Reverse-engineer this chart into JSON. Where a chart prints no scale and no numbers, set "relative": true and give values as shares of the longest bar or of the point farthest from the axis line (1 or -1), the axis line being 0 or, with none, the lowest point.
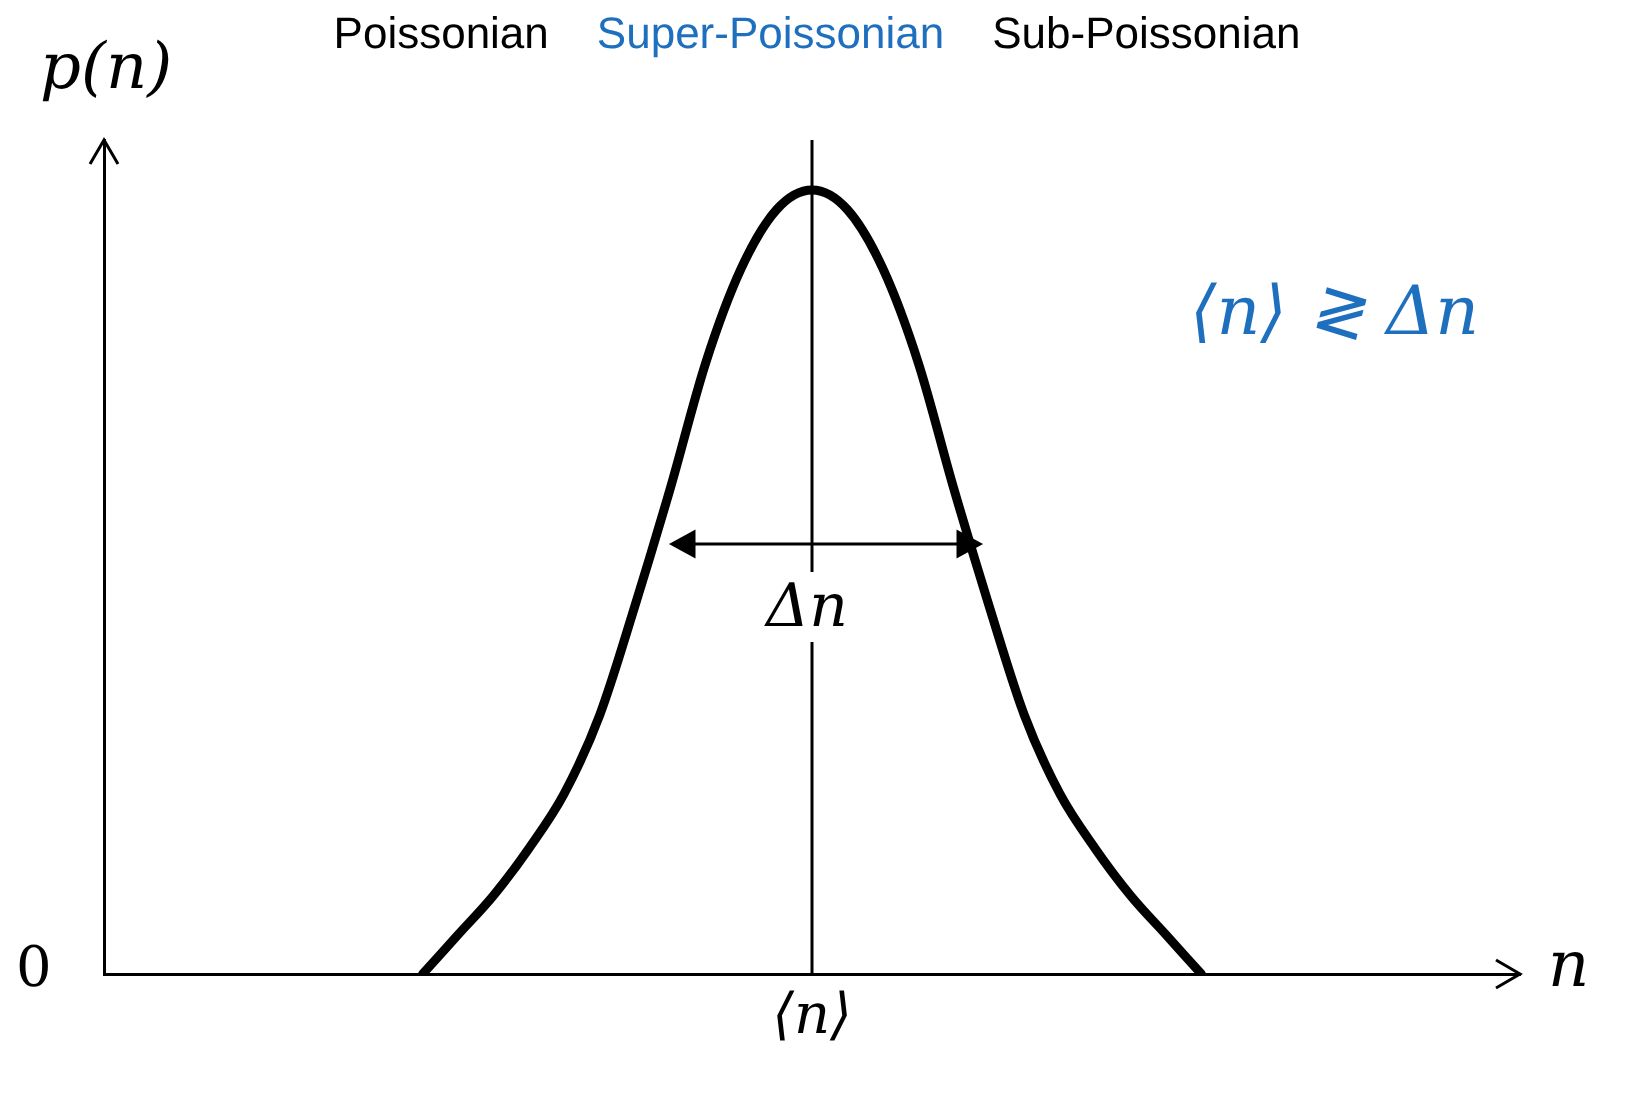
{
  "chart_data": {
    "type": "line",
    "relative": true,
    "title": "Poissonian",
    "xlabel": "n",
    "ylabel": "p(n)",
    "color": "#000000",
    "marker": "none",
    "line_style": "solid",
    "legend": false,
    "grid": false,
    "categories": [
      null,
      null,
      null,
      null,
      null,
      null,
      null,
      null,
      null,
      null,
      null,
      null,
      null,
      null,
      null,
      null,
      null,
      null,
      null,
      null,
      null,
      null,
      null,
      null,
      null,
      null,
      null,
      null,
      null,
      null,
      null,
      null,
      null,
      null,
      null,
      null,
      null,
      null,
      null,
      null,
      null
    ],
    "values": [
      null,
      null,
      null,
      null,
      null,
      null,
      null,
      null,
      null,
      0,
      0.05,
      0.1,
      0.16,
      0.23,
      0.33,
      0.47,
      0.62,
      0.78,
      0.9,
      0.975,
      1,
      0.975,
      0.9,
      0.78,
      0.62,
      0.47,
      0.33,
      0.23,
      0.16,
      0.1,
      0.05,
      0,
      null,
      null,
      null,
      null,
      null,
      null,
      null,
      null,
      null
    ],
    "ref_lines": [
      {
        "axis": "x",
        "label": "⟨n⟩"
      }
    ],
    "annotations": [
      "Δn",
      "0",
      "Super-Poissonian",
      "Sub-Poissonian",
      "⟨n⟩ ≷ Δn"
    ]
  }
}
